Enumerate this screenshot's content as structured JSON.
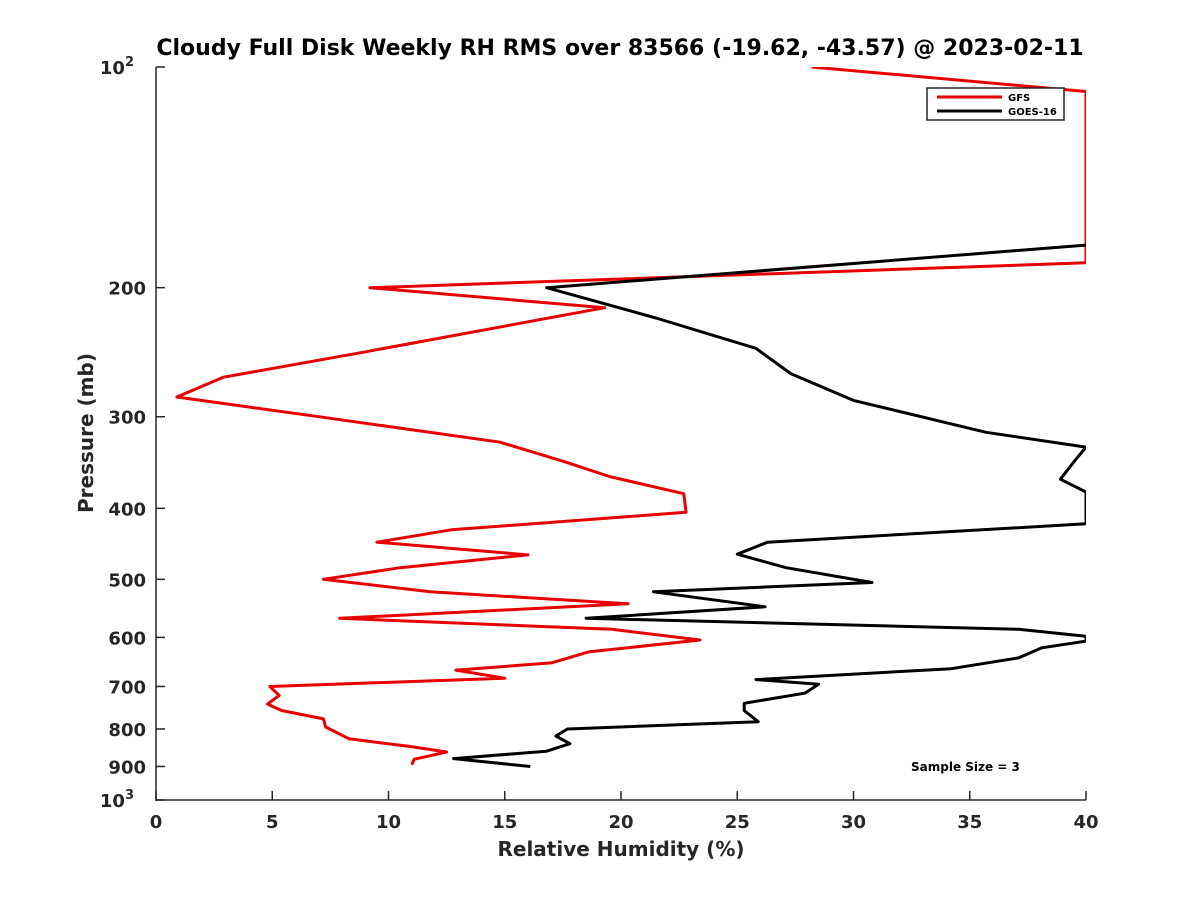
{
  "chart_data": {
    "type": "line",
    "title": "Cloudy Full Disk Weekly RH RMS over 83566 (-19.62, -43.57) @ 2023-02-11",
    "xlabel": "Relative Humidity (%)",
    "ylabel": "Pressure (mb)",
    "xlim": [
      0,
      40
    ],
    "ylim": [
      100,
      1000
    ],
    "yscale": "log",
    "y_reversed": true,
    "grid": false,
    "legend_position": "top-right",
    "x_ticks": [
      0,
      5,
      10,
      15,
      20,
      25,
      30,
      35,
      40
    ],
    "y_ticks": [
      {
        "value": 100,
        "label": "10",
        "sup": "2"
      },
      {
        "value": 200,
        "label": "200",
        "sup": ""
      },
      {
        "value": 300,
        "label": "300",
        "sup": ""
      },
      {
        "value": 400,
        "label": "400",
        "sup": ""
      },
      {
        "value": 500,
        "label": "500",
        "sup": ""
      },
      {
        "value": 600,
        "label": "600",
        "sup": ""
      },
      {
        "value": 700,
        "label": "700",
        "sup": ""
      },
      {
        "value": 800,
        "label": "800",
        "sup": ""
      },
      {
        "value": 900,
        "label": "900",
        "sup": ""
      },
      {
        "value": 1000,
        "label": "10",
        "sup": "3"
      }
    ],
    "series": [
      {
        "name": "GFS",
        "color": "#e60000",
        "points": [
          [
            28.2,
            100
          ],
          [
            40,
            108
          ],
          [
            40,
            185
          ],
          [
            9.2,
            200
          ],
          [
            19.3,
            213
          ],
          [
            8.9,
            245
          ],
          [
            2.9,
            265
          ],
          [
            0.9,
            282
          ],
          [
            7.0,
            300
          ],
          [
            14.8,
            325
          ],
          [
            17.5,
            345
          ],
          [
            19.5,
            362
          ],
          [
            22.7,
            382
          ],
          [
            22.8,
            405
          ],
          [
            12.7,
            428
          ],
          [
            9.5,
            445
          ],
          [
            16.0,
            463
          ],
          [
            10.5,
            482
          ],
          [
            7.2,
            500
          ],
          [
            11.8,
            520
          ],
          [
            20.3,
            540
          ],
          [
            7.9,
            565
          ],
          [
            19.6,
            585
          ],
          [
            23.4,
            605
          ],
          [
            18.6,
            628
          ],
          [
            17.0,
            650
          ],
          [
            12.9,
            665
          ],
          [
            15.0,
            682
          ],
          [
            4.9,
            700
          ],
          [
            5.3,
            720
          ],
          [
            4.8,
            740
          ],
          [
            5.4,
            755
          ],
          [
            7.2,
            775
          ],
          [
            7.3,
            795
          ],
          [
            8.3,
            825
          ],
          [
            10.9,
            845
          ],
          [
            12.5,
            860
          ],
          [
            11.1,
            880
          ],
          [
            11.0,
            895
          ]
        ]
      },
      {
        "name": "GOES-16",
        "color": "#000000",
        "points": [
          [
            40,
            175
          ],
          [
            16.8,
            200
          ],
          [
            21.5,
            220
          ],
          [
            25.8,
            242
          ],
          [
            27.3,
            262
          ],
          [
            30.0,
            285
          ],
          [
            35.7,
            315
          ],
          [
            40,
            330
          ],
          [
            39.5,
            345
          ],
          [
            38.9,
            365
          ],
          [
            40,
            380
          ],
          [
            40,
            420
          ],
          [
            26.3,
            445
          ],
          [
            25.0,
            462
          ],
          [
            27.1,
            482
          ],
          [
            30.8,
            505
          ],
          [
            21.4,
            520
          ],
          [
            26.2,
            545
          ],
          [
            18.5,
            565
          ],
          [
            37.1,
            585
          ],
          [
            40,
            598
          ],
          [
            40,
            607
          ],
          [
            38.1,
            620
          ],
          [
            37.1,
            640
          ],
          [
            34.2,
            662
          ],
          [
            25.8,
            685
          ],
          [
            28.5,
            695
          ],
          [
            27.9,
            715
          ],
          [
            25.3,
            738
          ],
          [
            25.3,
            755
          ],
          [
            25.9,
            782
          ],
          [
            17.7,
            800
          ],
          [
            17.2,
            818
          ],
          [
            17.8,
            838
          ],
          [
            16.8,
            858
          ],
          [
            12.8,
            878
          ],
          [
            16.1,
            900
          ]
        ]
      }
    ],
    "annotations": [
      "Sample Size = 3"
    ]
  }
}
